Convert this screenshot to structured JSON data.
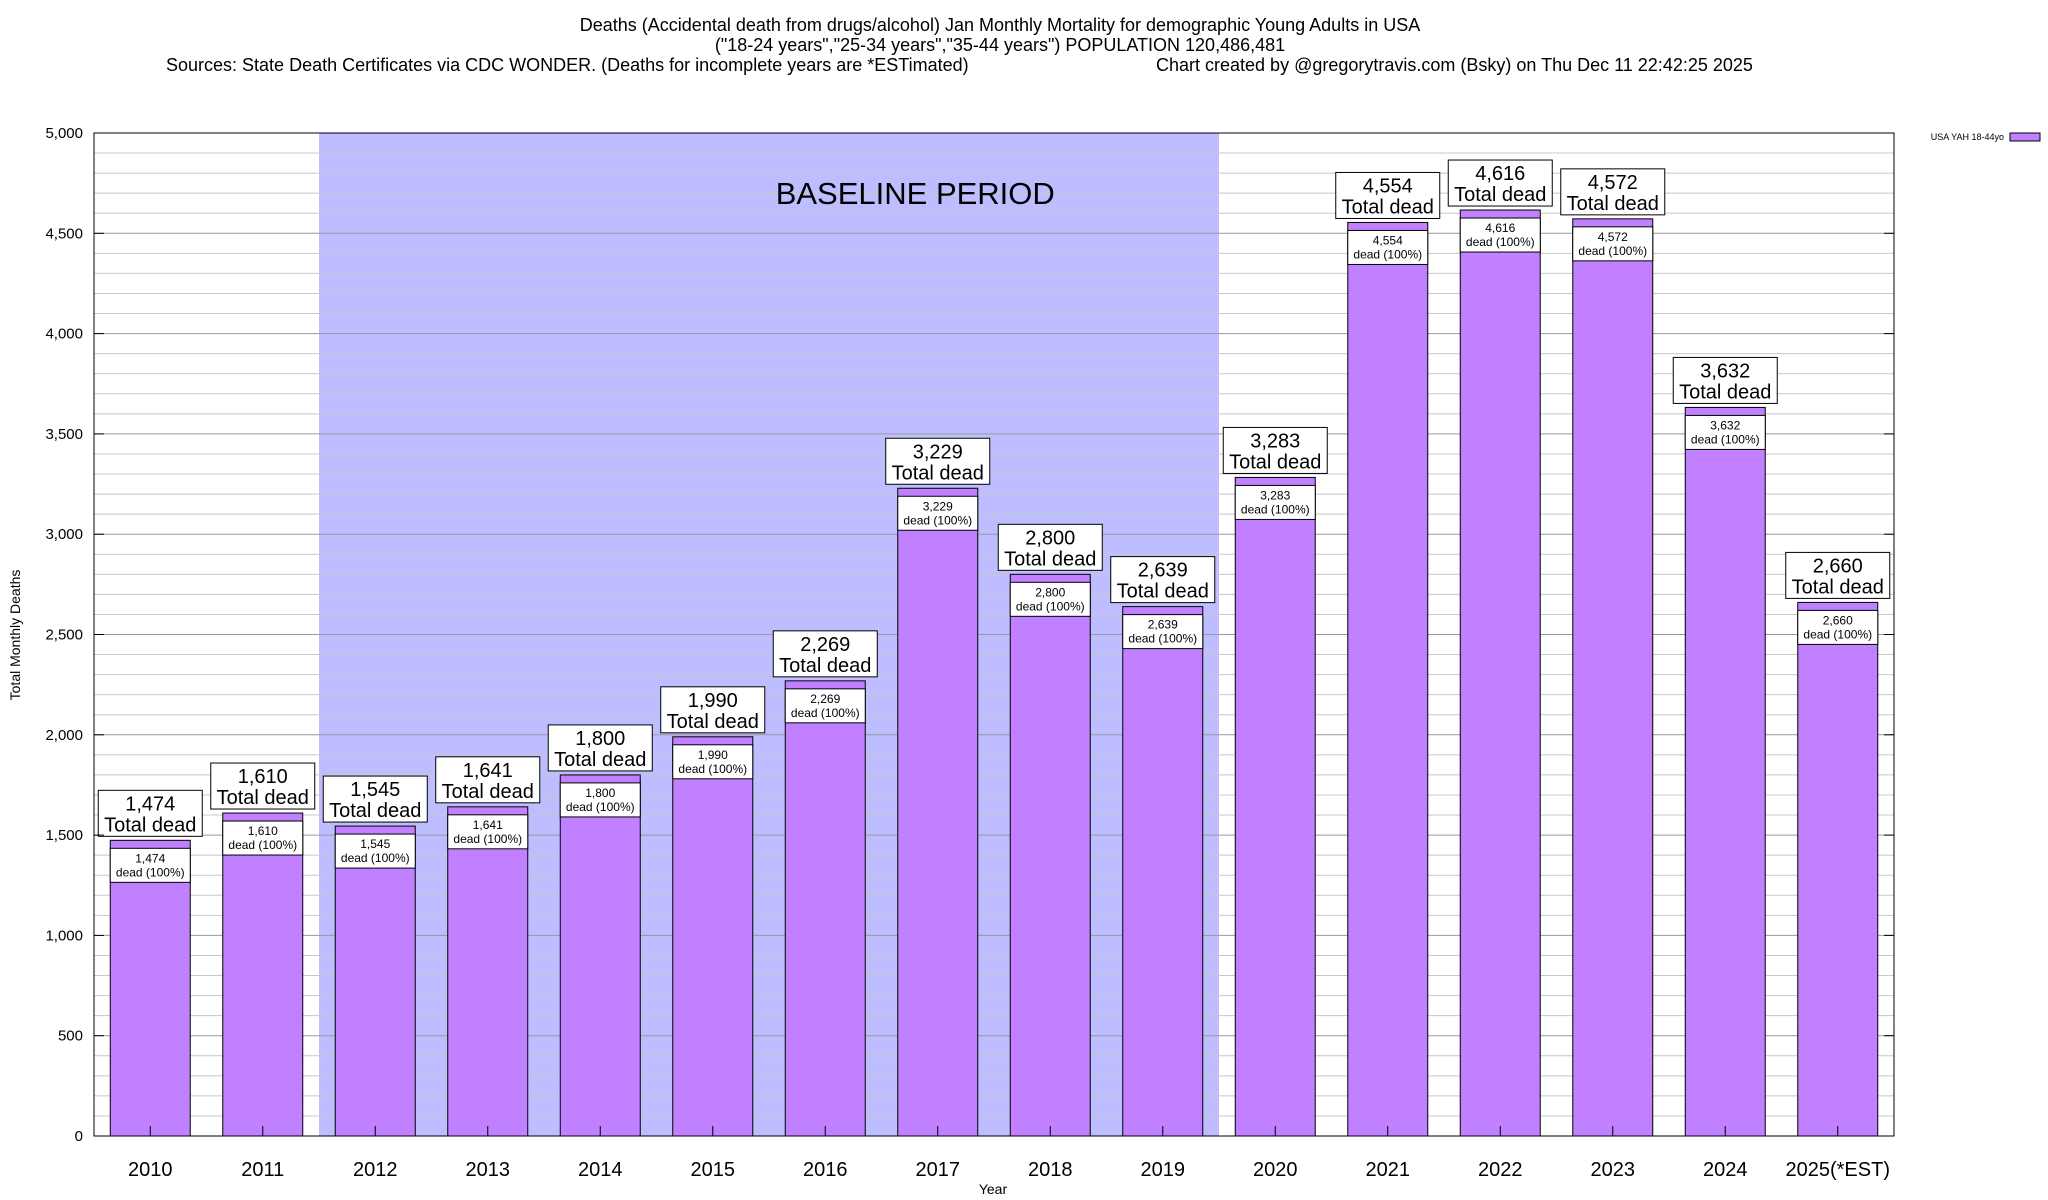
{
  "chart_data": {
    "type": "bar",
    "title_lines": [
      "Deaths (Accidental death from drugs/alcohol) Jan Monthly Mortality for demographic Young Adults in USA",
      "(\"18-24 years\",\"25-34 years\",\"35-44 years\") POPULATION 120,486,481"
    ],
    "source_line": "Sources: State Death Certificates via CDC WONDER. (Deaths for incomplete years are *ESTimated)",
    "credit_line": "Chart created by @gregorytravis.com (Bsky) on Thu Dec 11 22:42:25 2025",
    "xlabel": "Year",
    "ylabel": "Total Monthly Deaths",
    "ylim": [
      0,
      5000
    ],
    "y_ticks": [
      0,
      500,
      1000,
      1500,
      2000,
      2500,
      3000,
      3500,
      4000,
      4500,
      5000
    ],
    "y_tick_labels": [
      "0",
      "500",
      "1,000",
      "1,500",
      "2,000",
      "2,500",
      "3,000",
      "3,500",
      "4,000",
      "4,500",
      "5,000"
    ],
    "y_minor_step": 100,
    "grid": true,
    "legend_position": "top-right",
    "categories": [
      "2010",
      "2011",
      "2012",
      "2013",
      "2014",
      "2015",
      "2016",
      "2017",
      "2018",
      "2019",
      "2020",
      "2021",
      "2022",
      "2023",
      "2024",
      "2025(*EST)"
    ],
    "series": [
      {
        "name": "USA YAH 18-44yo",
        "color": "#c080ff",
        "values": [
          1474,
          1610,
          1545,
          1641,
          1800,
          1990,
          2269,
          3229,
          2800,
          2639,
          3283,
          4554,
          4616,
          4572,
          3632,
          2660
        ],
        "value_labels": [
          "1,474",
          "1,610",
          "1,545",
          "1,641",
          "1,800",
          "1,990",
          "2,269",
          "3,229",
          "2,800",
          "2,639",
          "3,283",
          "4,554",
          "4,616",
          "4,572",
          "3,632",
          "2,660"
        ]
      }
    ],
    "total_label_suffix": "Total dead",
    "inner_label_suffix": "dead (100%)",
    "baseline_period": {
      "label": "BASELINE PERIOD",
      "from": "2012",
      "to": "2019",
      "color": "#bdbdff"
    }
  }
}
